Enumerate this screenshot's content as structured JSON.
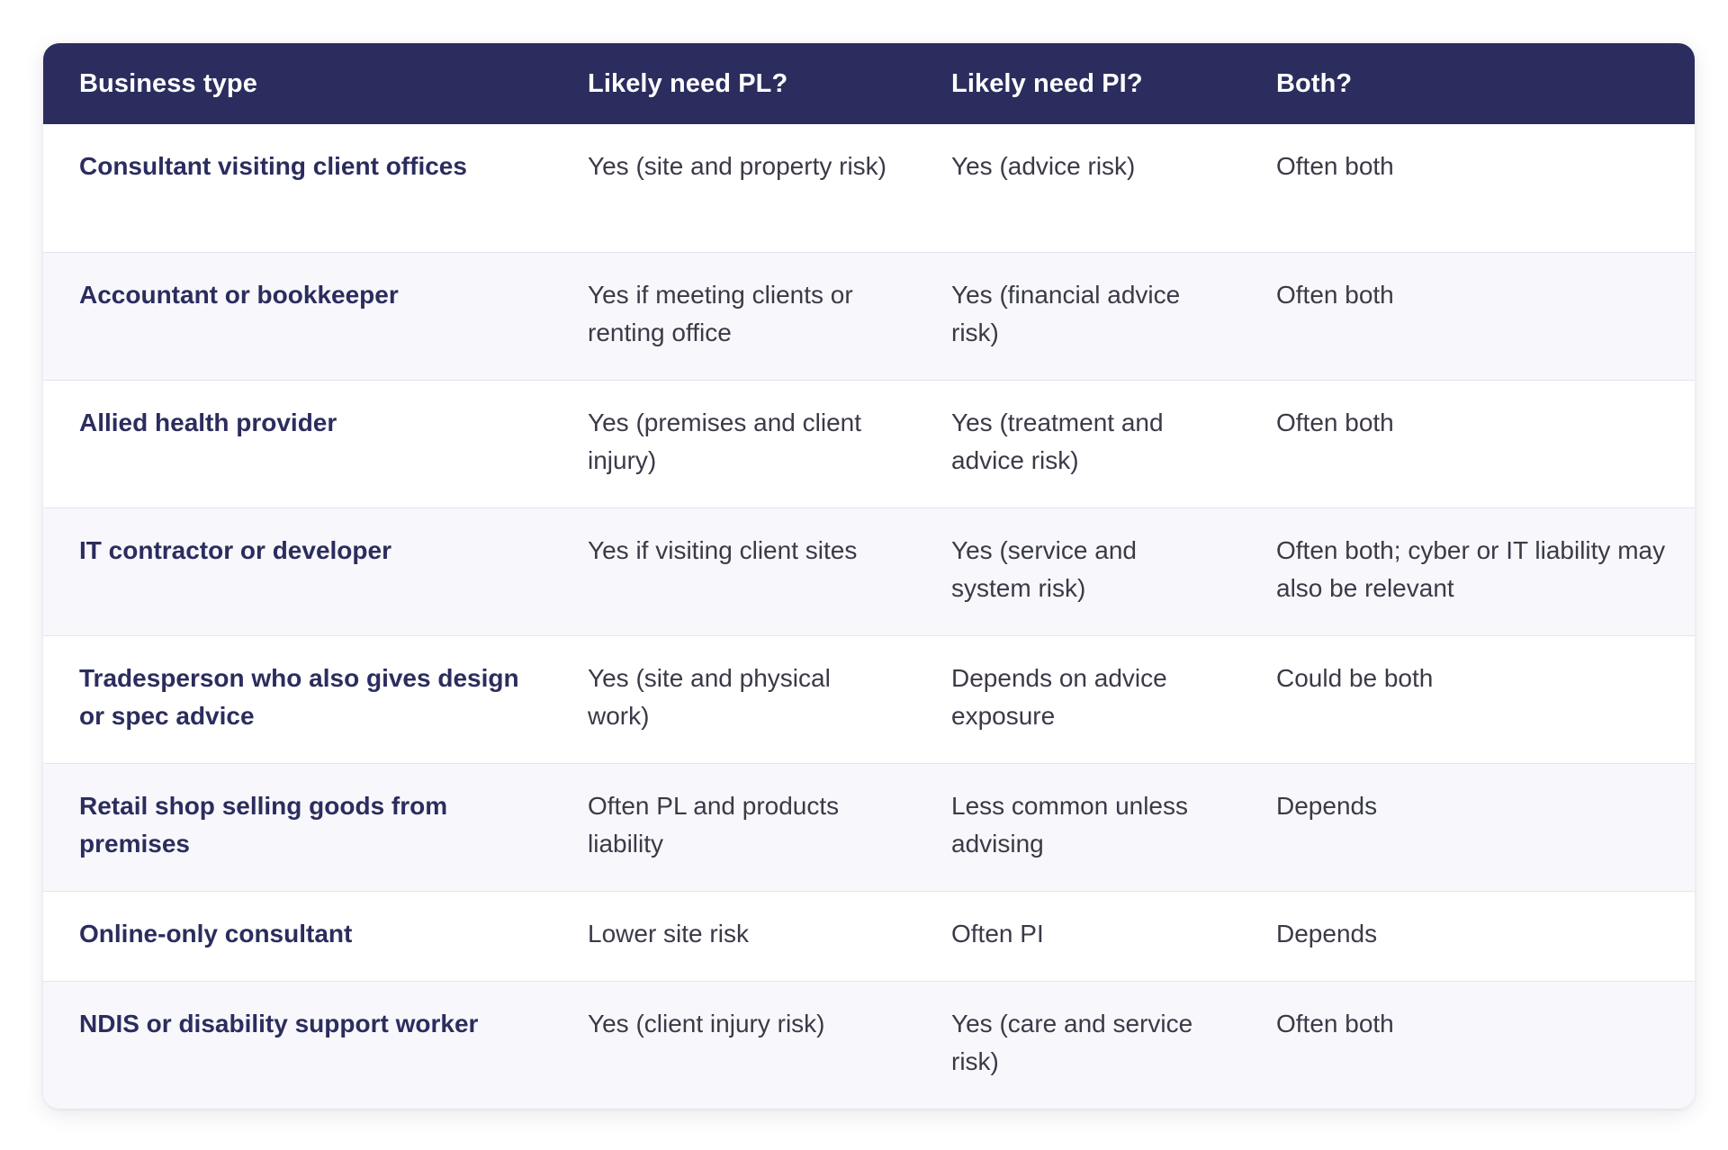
{
  "table": {
    "headers": [
      "Business type",
      "Likely need PL?",
      "Likely need PI?",
      "Both?"
    ],
    "rows": [
      {
        "type": "Consultant visiting client offices",
        "pl": "Yes (site and property risk)",
        "pi": "Yes (advice risk)",
        "both": "Often both"
      },
      {
        "type": "Accountant or bookkeeper",
        "pl": "Yes if meeting clients or renting office",
        "pi": "Yes (financial advice risk)",
        "both": "Often both"
      },
      {
        "type": "Allied health provider",
        "pl": "Yes (premises and client injury)",
        "pi": "Yes (treatment and advice risk)",
        "both": "Often both"
      },
      {
        "type": "IT contractor or developer",
        "pl": "Yes if visiting client sites",
        "pi": "Yes (service and system risk)",
        "both": "Often both; cyber or IT liability may also be relevant"
      },
      {
        "type": "Tradesperson who also gives design or spec advice",
        "pl": "Yes (site and physical work)",
        "pi": "Depends on advice exposure",
        "both": "Could be both"
      },
      {
        "type": "Retail shop selling goods from premises",
        "pl": "Often PL and products liability",
        "pi": "Less common unless advising",
        "both": "Depends"
      },
      {
        "type": "Online-only consultant",
        "pl": "Lower site risk",
        "pi": "Often PI",
        "both": "Depends"
      },
      {
        "type": "NDIS or disability support worker",
        "pl": "Yes (client injury risk)",
        "pi": "Yes (care and service risk)",
        "both": "Often both"
      }
    ]
  },
  "colors": {
    "header_bg": "#2b2d5e",
    "header_text": "#ffffff",
    "row_alt_bg": "#f8f8fc",
    "type_text": "#2b2d5e",
    "cell_text": "#3a3a48"
  }
}
